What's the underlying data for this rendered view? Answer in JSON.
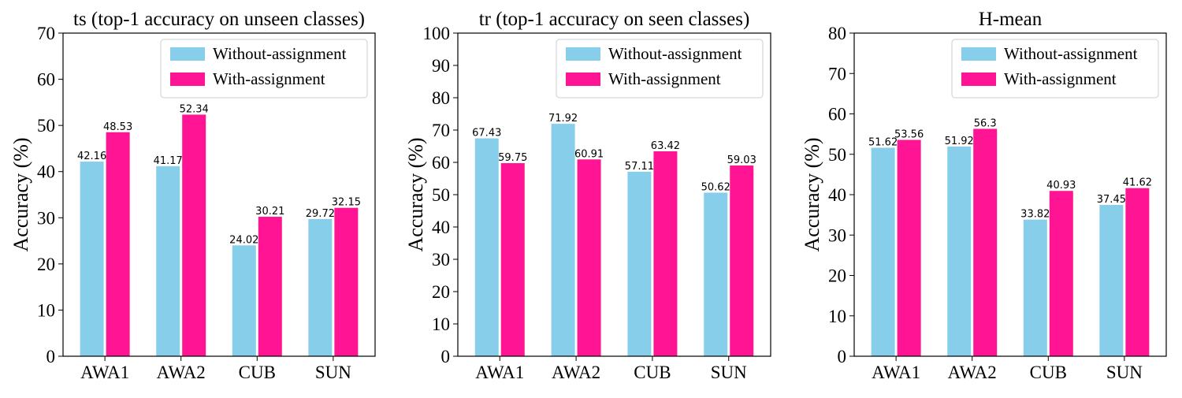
{
  "chart_data": [
    {
      "type": "bar",
      "title": "ts (top-1 accuracy on unseen classes)",
      "ylabel": "Accuracy (%)",
      "xlabel": "",
      "categories": [
        "AWA1",
        "AWA2",
        "CUB",
        "SUN"
      ],
      "ylim": [
        0,
        70
      ],
      "yticks": [
        0,
        10,
        20,
        30,
        40,
        50,
        60,
        70
      ],
      "legend": "top-right",
      "grid": false,
      "series": [
        {
          "name": "Without-assignment",
          "color": "#87CEEB",
          "values": [
            42.16,
            41.17,
            24.02,
            29.72
          ],
          "labels": [
            "42.16",
            "41.17",
            "24.02",
            "29.72"
          ]
        },
        {
          "name": "With-assignment",
          "color": "#FF1493",
          "values": [
            48.53,
            52.34,
            30.21,
            32.15
          ],
          "labels": [
            "48.53",
            "52.34",
            "30.21",
            "32.15"
          ]
        }
      ]
    },
    {
      "type": "bar",
      "title": "tr (top-1 accuracy on seen classes)",
      "ylabel": "Accuracy (%)",
      "xlabel": "",
      "categories": [
        "AWA1",
        "AWA2",
        "CUB",
        "SUN"
      ],
      "ylim": [
        0,
        100
      ],
      "yticks": [
        0,
        10,
        20,
        30,
        40,
        50,
        60,
        70,
        80,
        90,
        100
      ],
      "legend": "top-right",
      "grid": false,
      "series": [
        {
          "name": "Without-assignment",
          "color": "#87CEEB",
          "values": [
            67.43,
            71.92,
            57.11,
            50.62
          ],
          "labels": [
            "67.43",
            "71.92",
            "57.11",
            "50.62"
          ]
        },
        {
          "name": "With-assignment",
          "color": "#FF1493",
          "values": [
            59.75,
            60.91,
            63.42,
            59.03
          ],
          "labels": [
            "59.75",
            "60.91",
            "63.42",
            "59.03"
          ]
        }
      ]
    },
    {
      "type": "bar",
      "title": "H-mean",
      "ylabel": "Accuracy (%)",
      "xlabel": "",
      "categories": [
        "AWA1",
        "AWA2",
        "CUB",
        "SUN"
      ],
      "ylim": [
        0,
        80
      ],
      "yticks": [
        0,
        10,
        20,
        30,
        40,
        50,
        60,
        70,
        80
      ],
      "legend": "top-right",
      "grid": false,
      "series": [
        {
          "name": "Without-assignment",
          "color": "#87CEEB",
          "values": [
            51.62,
            51.92,
            33.82,
            37.45
          ],
          "labels": [
            "51.62",
            "51.92",
            "33.82",
            "37.45"
          ]
        },
        {
          "name": "With-assignment",
          "color": "#FF1493",
          "values": [
            53.56,
            56.3,
            40.93,
            41.62
          ],
          "labels": [
            "53.56",
            "56.3",
            "40.93",
            "41.62"
          ]
        }
      ]
    }
  ]
}
